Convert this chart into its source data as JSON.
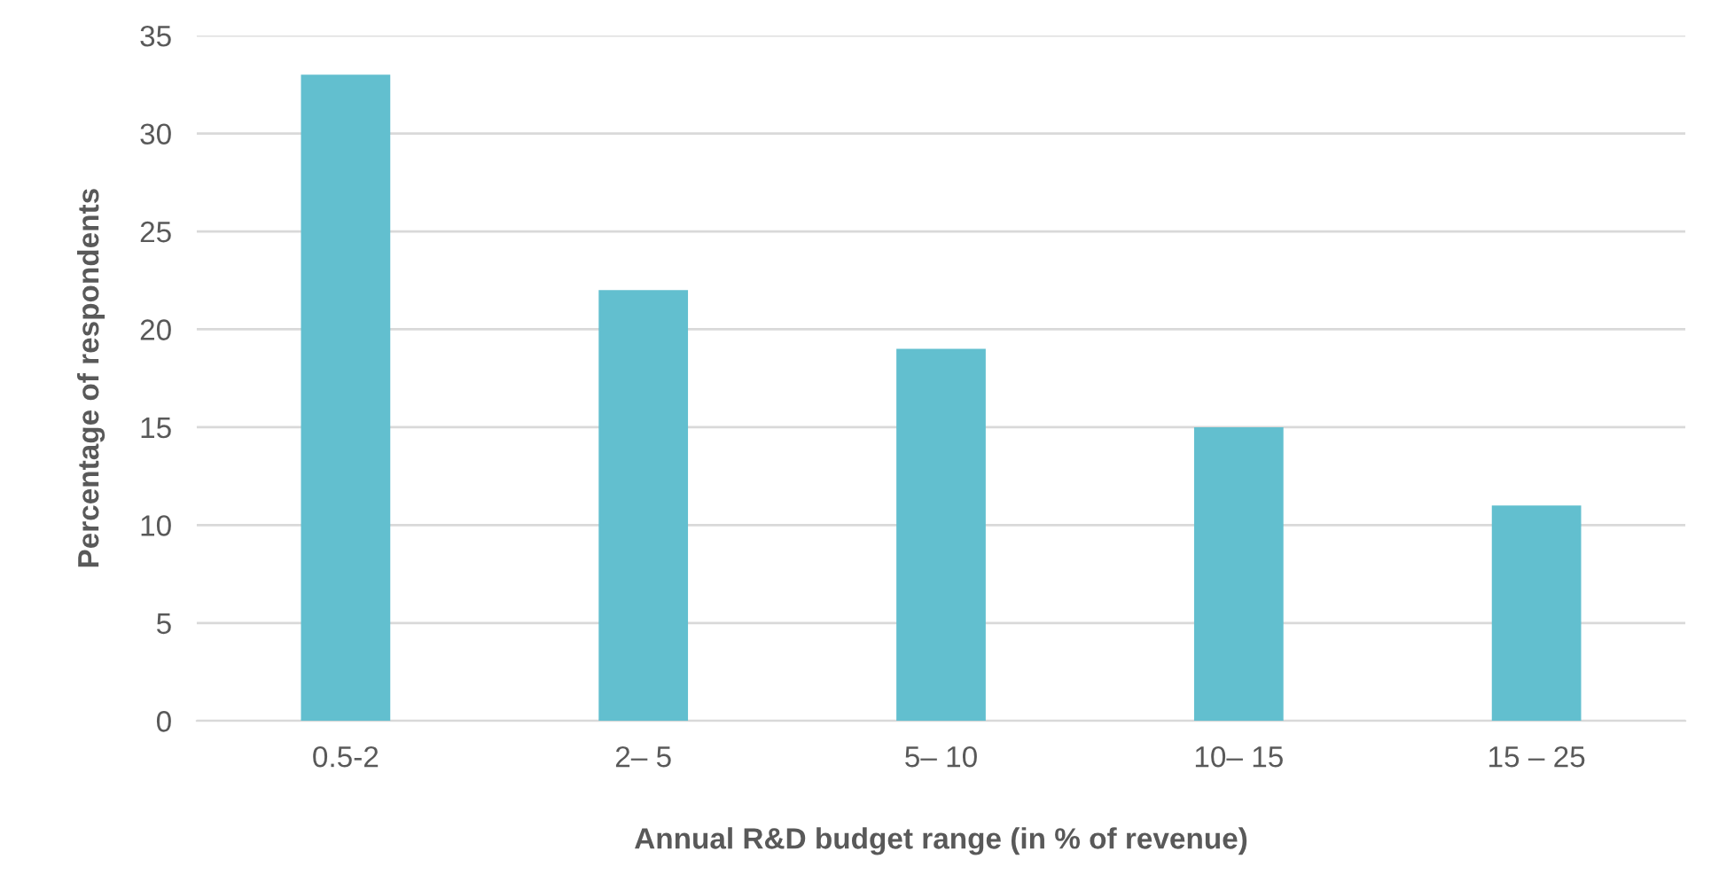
{
  "chart_data": {
    "type": "bar",
    "xlabel": "Annual R&D budget range (in % of revenue)",
    "ylabel": "Percentage of respondents",
    "categories": [
      "0.5-2",
      "2– 5",
      "5– 10",
      "10– 15",
      "15 – 25"
    ],
    "values": [
      33,
      22,
      19,
      15,
      11
    ],
    "color": "#62bfcf",
    "ylim": [
      0,
      35
    ],
    "yticks": [
      0,
      5,
      10,
      15,
      20,
      25,
      30,
      35
    ],
    "grid": "y"
  }
}
